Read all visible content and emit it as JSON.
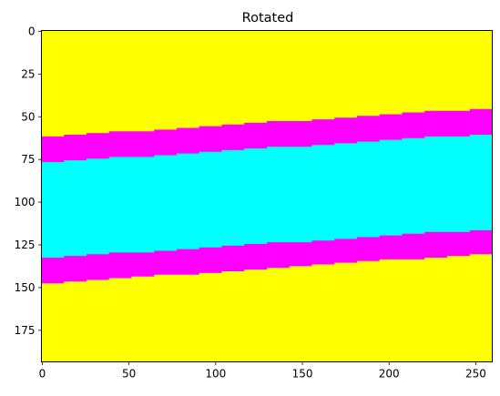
{
  "chart_data": {
    "type": "heatmap",
    "title": "Rotated",
    "xlabel": "",
    "ylabel": "",
    "xlim": [
      -0.5,
      259.5
    ],
    "ylim": [
      193.5,
      -0.5
    ],
    "x_ticks": [
      0,
      50,
      100,
      150,
      200,
      250
    ],
    "y_ticks": [
      0,
      25,
      50,
      75,
      100,
      125,
      150,
      175
    ],
    "grid": false,
    "image_width": 260,
    "image_height": 194,
    "background_color": "#ffff00",
    "step_columns": 13,
    "bands": [
      {
        "color": "#ff00ff",
        "top_at_x0": 62,
        "top_at_xmax": 45,
        "bottom_at_x0": 148,
        "bottom_at_xmax": 130
      },
      {
        "color": "#00ffff",
        "top_at_x0": 77,
        "top_at_xmax": 60,
        "bottom_at_x0": 133,
        "bottom_at_xmax": 116
      }
    ]
  }
}
